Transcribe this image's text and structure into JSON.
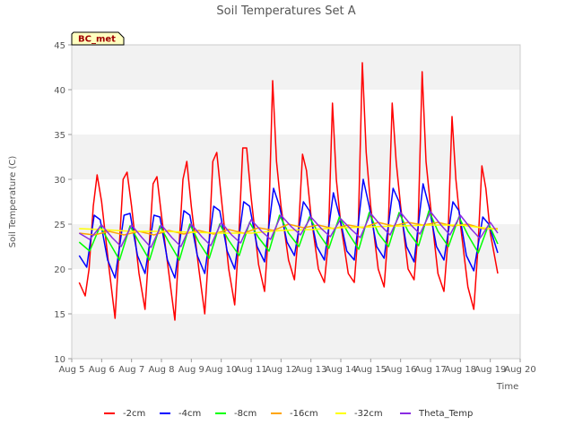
{
  "chart_data": {
    "type": "line",
    "title": "Soil Temperatures Set A",
    "xlabel": "Time",
    "ylabel": "Soil Temperature (C)",
    "station_label": "BC_met",
    "xlim": [
      5,
      20
    ],
    "ylim": [
      10,
      45
    ],
    "x_ticks": [
      5,
      6,
      7,
      8,
      9,
      10,
      11,
      12,
      13,
      14,
      15,
      16,
      17,
      18,
      19,
      20
    ],
    "x_tick_labels": [
      "Aug 5",
      "Aug 6",
      "Aug 7",
      "Aug 8",
      "Aug 9",
      "Aug 10",
      "Aug 11",
      "Aug 12",
      "Aug 13",
      "Aug 14",
      "Aug 15",
      "Aug 16",
      "Aug 17",
      "Aug 18",
      "Aug 19",
      "Aug 20"
    ],
    "y_ticks": [
      10,
      15,
      20,
      25,
      30,
      35,
      40,
      45
    ],
    "y_tick_labels": [
      "10",
      "15",
      "20",
      "25",
      "30",
      "35",
      "40",
      "45"
    ],
    "grid": "horizontal bands",
    "legend_position": "bottom",
    "series": [
      {
        "name": "-2cm",
        "color": "#ff0000",
        "x": [
          5.25,
          5.45,
          5.58,
          5.72,
          5.85,
          6.0,
          6.25,
          6.45,
          6.58,
          6.72,
          6.85,
          7.0,
          7.25,
          7.45,
          7.58,
          7.72,
          7.85,
          8.0,
          8.25,
          8.45,
          8.58,
          8.72,
          8.85,
          9.0,
          9.25,
          9.45,
          9.58,
          9.72,
          9.85,
          10.0,
          10.25,
          10.45,
          10.58,
          10.72,
          10.85,
          11.0,
          11.25,
          11.45,
          11.58,
          11.72,
          11.85,
          12.0,
          12.25,
          12.45,
          12.58,
          12.72,
          12.85,
          13.0,
          13.25,
          13.45,
          13.58,
          13.72,
          13.85,
          14.0,
          14.25,
          14.45,
          14.58,
          14.72,
          14.85,
          15.0,
          15.25,
          15.45,
          15.58,
          15.72,
          15.85,
          16.0,
          16.25,
          16.45,
          16.58,
          16.72,
          16.85,
          17.0,
          17.25,
          17.45,
          17.58,
          17.72,
          17.85,
          18.0,
          18.25,
          18.45,
          18.58,
          18.72,
          18.85,
          19.0,
          19.25
        ],
        "y": [
          18.5,
          17.0,
          20.0,
          27.0,
          30.5,
          27.5,
          20.0,
          14.5,
          22.0,
          30.0,
          30.8,
          27.0,
          19.5,
          15.5,
          22.0,
          29.5,
          30.3,
          26.0,
          19.5,
          14.3,
          22.0,
          30.0,
          32.0,
          27.0,
          20.0,
          15.0,
          22.0,
          32.0,
          33.0,
          28.0,
          20.0,
          16.0,
          23.0,
          33.5,
          33.5,
          28.0,
          20.5,
          17.5,
          24.0,
          41.0,
          32.0,
          27.0,
          21.0,
          18.8,
          24.0,
          32.8,
          31.0,
          26.0,
          20.0,
          18.5,
          23.0,
          38.5,
          30.0,
          25.0,
          19.5,
          18.5,
          24.0,
          43.0,
          33.0,
          27.0,
          20.0,
          18.0,
          24.0,
          38.5,
          32.0,
          27.0,
          20.0,
          18.8,
          24.0,
          42.0,
          32.0,
          27.0,
          19.5,
          17.5,
          23.0,
          37.0,
          30.0,
          25.0,
          18.0,
          15.5,
          22.0,
          31.5,
          29.0,
          24.0,
          19.5
        ]
      },
      {
        "name": "-4cm",
        "color": "#0000ff",
        "x": [
          5.25,
          5.5,
          5.75,
          5.95,
          6.2,
          6.45,
          6.75,
          6.95,
          7.2,
          7.45,
          7.75,
          7.95,
          8.2,
          8.45,
          8.75,
          8.95,
          9.2,
          9.45,
          9.75,
          9.95,
          10.2,
          10.45,
          10.75,
          10.95,
          11.2,
          11.45,
          11.75,
          11.95,
          12.2,
          12.45,
          12.75,
          12.95,
          13.2,
          13.45,
          13.75,
          13.95,
          14.2,
          14.45,
          14.75,
          14.95,
          15.2,
          15.45,
          15.75,
          15.95,
          16.2,
          16.45,
          16.75,
          16.95,
          17.2,
          17.45,
          17.75,
          17.95,
          18.2,
          18.45,
          18.75,
          18.95,
          19.25
        ],
        "y": [
          21.5,
          20.2,
          26.0,
          25.5,
          21.0,
          19.0,
          26.0,
          26.2,
          21.5,
          19.5,
          26.0,
          25.8,
          21.0,
          19.0,
          26.5,
          26.0,
          21.5,
          19.5,
          27.0,
          26.5,
          22.0,
          20.0,
          27.5,
          27.0,
          22.5,
          20.8,
          29.0,
          27.0,
          23.0,
          21.5,
          27.5,
          26.5,
          22.5,
          21.0,
          28.5,
          26.0,
          22.0,
          21.0,
          30.0,
          27.0,
          22.5,
          21.2,
          29.0,
          27.5,
          22.5,
          20.8,
          29.5,
          27.0,
          22.5,
          21.0,
          27.5,
          26.5,
          21.5,
          19.8,
          25.8,
          25.0,
          21.8
        ]
      },
      {
        "name": "-8cm",
        "color": "#00ff00",
        "x": [
          5.25,
          5.6,
          5.95,
          6.25,
          6.6,
          6.95,
          7.25,
          7.6,
          7.95,
          8.25,
          8.6,
          8.95,
          9.25,
          9.6,
          9.95,
          10.25,
          10.6,
          10.95,
          11.25,
          11.6,
          11.95,
          12.25,
          12.6,
          12.95,
          13.25,
          13.6,
          13.95,
          14.25,
          14.6,
          14.95,
          15.25,
          15.6,
          15.95,
          16.25,
          16.6,
          16.95,
          17.25,
          17.6,
          17.95,
          18.25,
          18.6,
          18.95,
          19.25
        ],
        "y": [
          23.0,
          22.0,
          24.8,
          23.0,
          21.0,
          24.8,
          23.0,
          21.0,
          24.8,
          23.0,
          21.0,
          25.0,
          23.0,
          21.2,
          25.0,
          23.2,
          21.5,
          25.2,
          23.5,
          22.0,
          26.0,
          24.0,
          22.5,
          25.8,
          24.0,
          22.3,
          25.8,
          24.0,
          22.2,
          26.3,
          24.0,
          22.5,
          26.3,
          24.2,
          22.6,
          26.5,
          24.2,
          22.5,
          25.8,
          23.8,
          21.8,
          25.0,
          22.8
        ]
      },
      {
        "name": "-16cm",
        "color": "#ffa500",
        "x": [
          5.25,
          5.75,
          6.25,
          6.75,
          7.25,
          7.75,
          8.25,
          8.75,
          9.25,
          9.75,
          10.25,
          10.75,
          11.25,
          11.75,
          12.25,
          12.75,
          13.25,
          13.75,
          14.25,
          14.75,
          15.25,
          15.75,
          16.25,
          16.75,
          17.25,
          17.75,
          18.25,
          18.75,
          19.25
        ],
        "y": [
          24.0,
          23.8,
          24.2,
          23.8,
          24.2,
          23.8,
          24.3,
          23.9,
          24.3,
          23.9,
          24.4,
          24.0,
          24.6,
          24.3,
          25.0,
          24.6,
          24.9,
          24.5,
          24.9,
          24.6,
          25.2,
          24.8,
          25.2,
          24.9,
          25.2,
          24.8,
          25.0,
          24.5,
          24.5
        ]
      },
      {
        "name": "-32cm",
        "color": "#ffff00",
        "x": [
          5.25,
          6.0,
          7.0,
          8.0,
          9.0,
          10.0,
          11.0,
          12.0,
          13.0,
          14.0,
          15.0,
          16.0,
          17.0,
          18.0,
          19.0,
          19.25
        ],
        "y": [
          24.5,
          24.4,
          24.2,
          24.2,
          24.1,
          24.0,
          24.0,
          24.3,
          24.4,
          24.6,
          24.7,
          24.8,
          24.9,
          24.9,
          24.5,
          24.4
        ]
      },
      {
        "name": "Theta_Temp",
        "color": "#8a2be2",
        "x": [
          5.25,
          5.6,
          6.0,
          6.35,
          6.65,
          7.0,
          7.35,
          7.65,
          8.0,
          8.35,
          8.65,
          9.0,
          9.35,
          9.65,
          10.0,
          10.35,
          10.65,
          11.0,
          11.35,
          11.65,
          12.0,
          12.35,
          12.65,
          13.0,
          13.35,
          13.65,
          14.0,
          14.35,
          14.65,
          15.0,
          15.35,
          15.65,
          16.0,
          16.35,
          16.65,
          17.0,
          17.35,
          17.65,
          18.0,
          18.35,
          18.65,
          19.0,
          19.25
        ],
        "y": [
          24.0,
          23.3,
          24.9,
          23.5,
          22.5,
          24.9,
          23.5,
          22.4,
          24.9,
          23.5,
          22.5,
          25.0,
          23.6,
          22.6,
          25.2,
          23.8,
          22.9,
          25.5,
          24.2,
          23.3,
          26.0,
          24.7,
          23.8,
          25.8,
          24.5,
          23.6,
          25.6,
          24.4,
          23.5,
          26.2,
          24.8,
          23.8,
          26.3,
          24.9,
          23.9,
          26.4,
          24.9,
          23.8,
          26.0,
          24.5,
          23.4,
          25.2,
          24.0
        ]
      }
    ]
  }
}
